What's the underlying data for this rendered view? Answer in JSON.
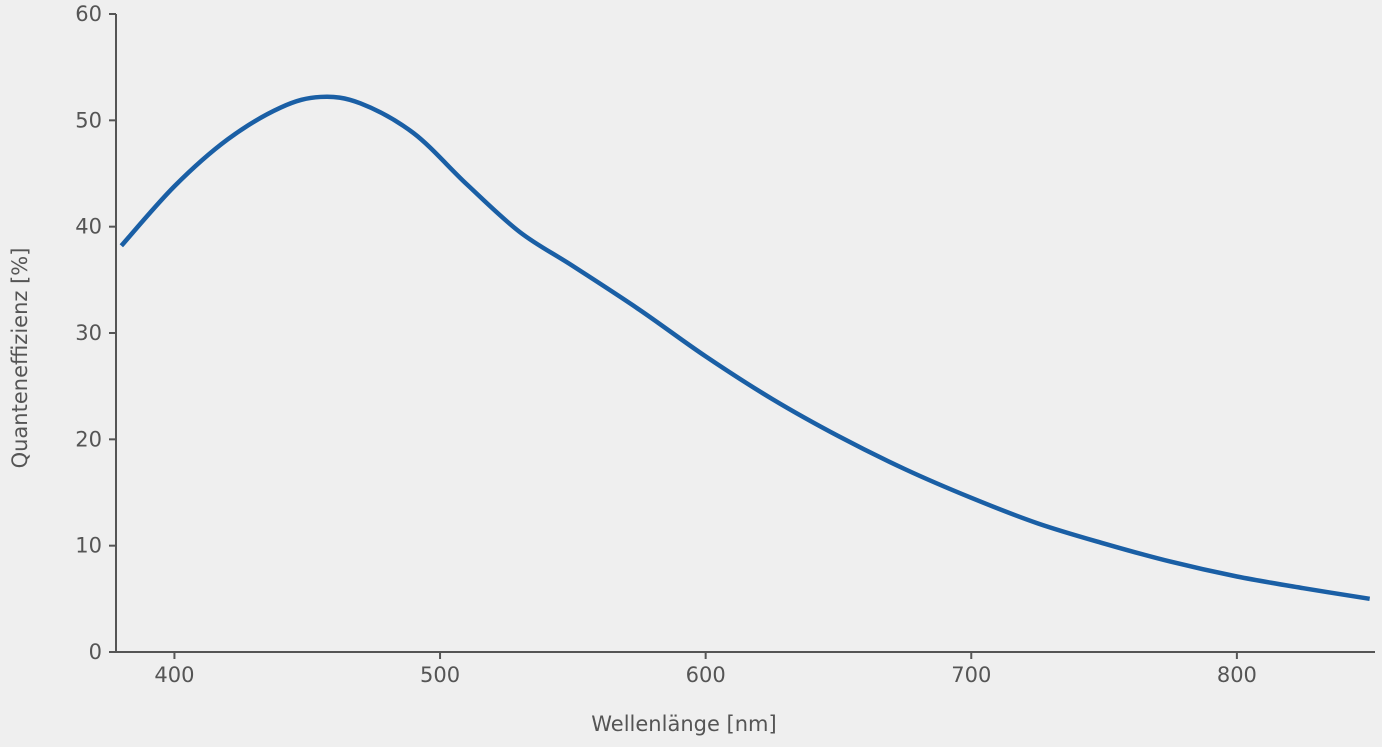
{
  "chart_data": {
    "type": "line",
    "title": "",
    "xlabel": "Wellenlänge [nm]",
    "ylabel": "Quanteneffizienz [%]",
    "xlim": [
      378,
      852
    ],
    "ylim": [
      0,
      60
    ],
    "x_ticks": [
      400,
      500,
      600,
      700,
      800
    ],
    "y_ticks": [
      0,
      10,
      20,
      30,
      40,
      50,
      60
    ],
    "grid": false,
    "colors": {
      "background": "#efefef",
      "axis": "#555555",
      "series": "#1a5fa5"
    },
    "series": [
      {
        "x": [
          380,
          400,
          420,
          440,
          455,
          470,
          490,
          510,
          530,
          550,
          575,
          600,
          625,
          650,
          675,
          700,
          725,
          750,
          775,
          800,
          825,
          850
        ],
        "y": [
          38.2,
          43.8,
          48.2,
          51.2,
          52.2,
          51.6,
          48.8,
          44.0,
          39.5,
          36.3,
          32.2,
          27.8,
          23.8,
          20.3,
          17.2,
          14.5,
          12.1,
          10.2,
          8.5,
          7.1,
          6.0,
          5.0
        ]
      }
    ]
  }
}
